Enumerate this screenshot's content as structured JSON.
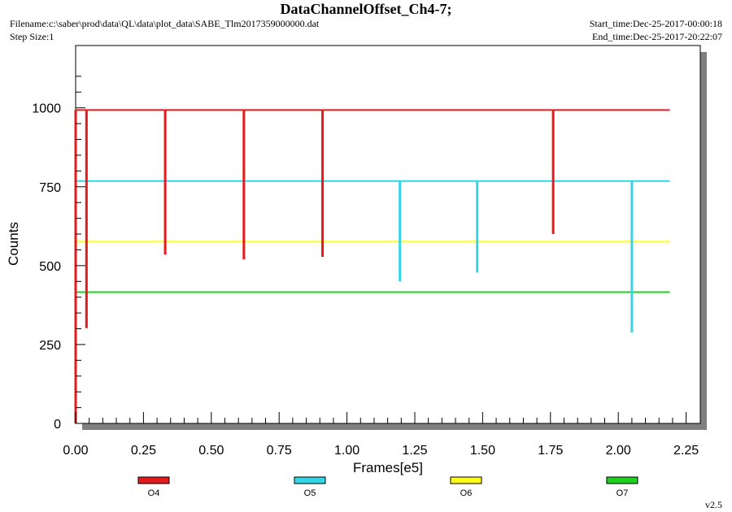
{
  "header": {
    "title": "DataChannelOffset_Ch4-7;",
    "filename": "Filename:c:\\saber\\prod\\data\\QL\\data\\plot_data\\SABE_Tlm2017359000000.dat",
    "step_size": "Step Size:1",
    "start_time": "Start_time:Dec-25-2017-00:00:18",
    "end_time": "End_time:Dec-25-2017-20:22:07"
  },
  "footer": {
    "version": "v2.5"
  },
  "chart_data": {
    "type": "line",
    "title": "DataChannelOffset_Ch4-7;",
    "xlabel": "Frames[e5]",
    "ylabel": "Counts",
    "xlim": [
      0,
      2.3
    ],
    "ylim": [
      0,
      1150
    ],
    "x_ticks": [
      "0.00",
      "0.25",
      "0.50",
      "0.75",
      "1.00",
      "1.25",
      "1.50",
      "1.75",
      "2.00",
      "2.25"
    ],
    "y_ticks": [
      "0",
      "250",
      "500",
      "750",
      "1000"
    ],
    "grid": false,
    "legend_position": "bottom",
    "x_range_data": [
      0,
      2.19
    ],
    "series": [
      {
        "name": "O4",
        "color": "#e41a1c",
        "baseline": 993,
        "x": [
          0.0,
          0.04,
          0.33,
          0.62,
          0.91,
          1.76
        ],
        "y": [
          0,
          302,
          535,
          520,
          528,
          600
        ]
      },
      {
        "name": "O5",
        "color": "#33d6e6",
        "baseline": 768,
        "x": [
          0.0,
          1.195,
          1.48,
          2.05
        ],
        "y": [
          10,
          450,
          478,
          288
        ]
      },
      {
        "name": "O6",
        "color": "#ffff1a",
        "baseline": 576,
        "x": [],
        "y": []
      },
      {
        "name": "O7",
        "color": "#1fd01f",
        "baseline": 416,
        "x": [
          0.0
        ],
        "y": [
          0
        ]
      }
    ]
  }
}
